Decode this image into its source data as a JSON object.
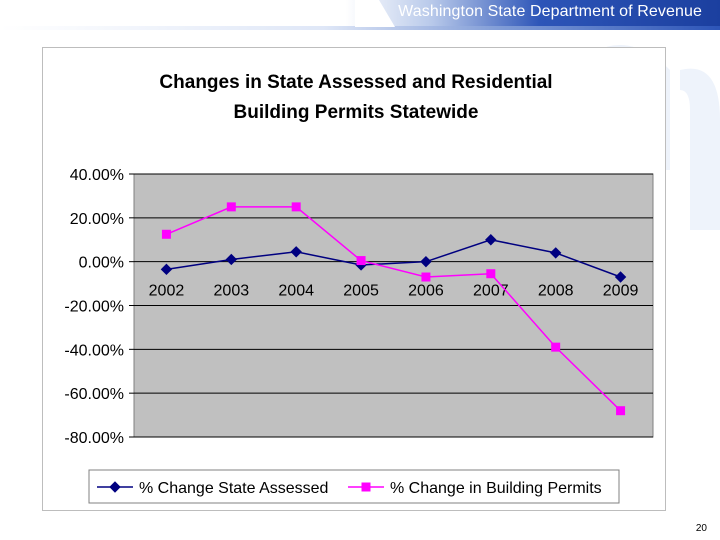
{
  "header": {
    "title": "Washington State Department of Revenue"
  },
  "page_number": "20",
  "colors": {
    "header_blue": "#1b3f9f",
    "plot_bg": "#c0c0c0",
    "series_1": "#000080",
    "series_2": "#ff00ff"
  },
  "chart_data": {
    "type": "line",
    "title_lines": [
      "Changes in State Assessed and Residential",
      "Building Permits Statewide"
    ],
    "categories": [
      "2002",
      "2003",
      "2004",
      "2005",
      "2006",
      "2007",
      "2008",
      "2009"
    ],
    "series": [
      {
        "name": "% Change State Assessed",
        "color": "#000080",
        "marker": "diamond",
        "values": [
          -3.5,
          1.0,
          4.5,
          -1.5,
          0.0,
          10.0,
          4.0,
          -7.0
        ]
      },
      {
        "name": "% Change in Building Permits",
        "color": "#ff00ff",
        "marker": "square",
        "values": [
          12.5,
          25.0,
          25.0,
          0.5,
          -7.0,
          -5.5,
          -39.0,
          -68.0
        ]
      }
    ],
    "ylim": [
      -80,
      40
    ],
    "yticks": [
      40,
      20,
      0,
      -20,
      -40,
      -60,
      -80
    ],
    "ytick_labels": [
      "40.00%",
      "20.00%",
      "0.00%",
      "-20.00%",
      "-40.00%",
      "-60.00%",
      "-80.00%"
    ],
    "xlabel": "",
    "ylabel": "",
    "grid": true,
    "legend_position": "bottom"
  }
}
